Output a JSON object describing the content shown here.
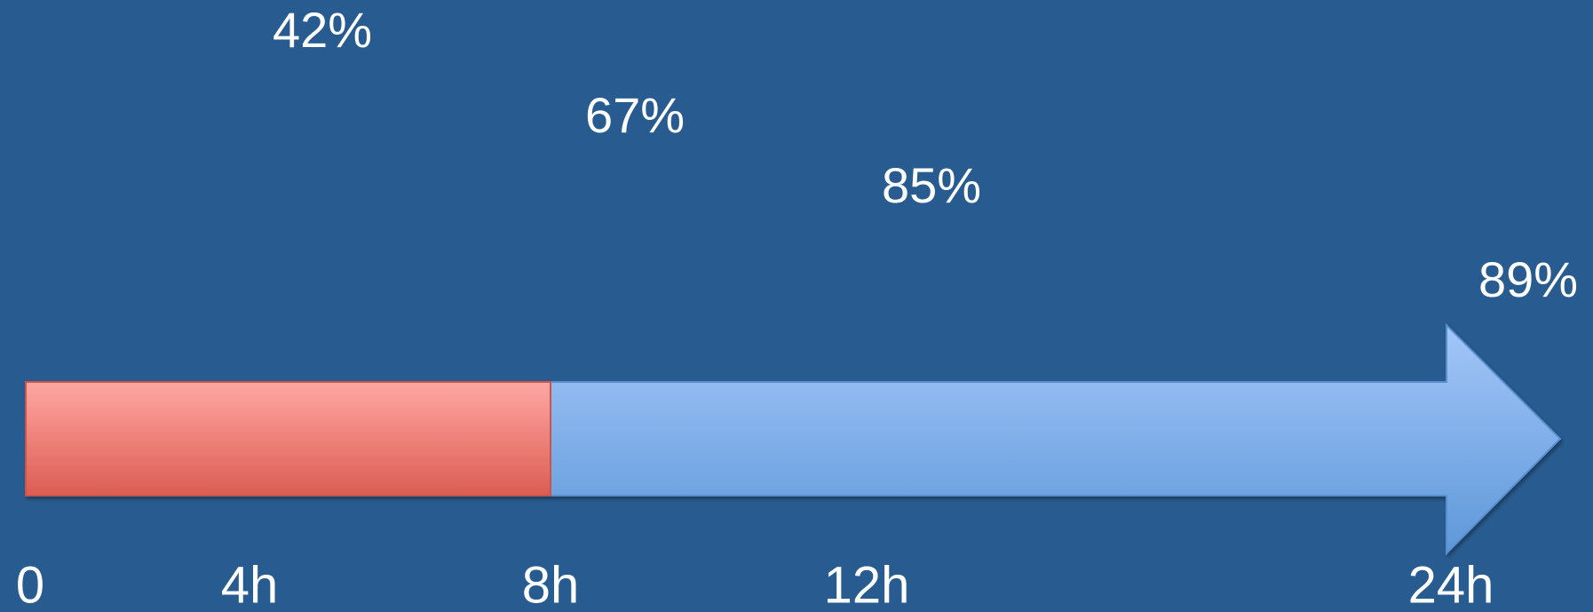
{
  "timeline": {
    "ticks": [
      "0",
      "4h",
      "8h",
      "12h",
      "24h"
    ],
    "lines": [
      {
        "label": "42%"
      },
      {
        "label": "67%"
      },
      {
        "label": "85%"
      },
      {
        "label": "89%"
      }
    ]
  }
}
